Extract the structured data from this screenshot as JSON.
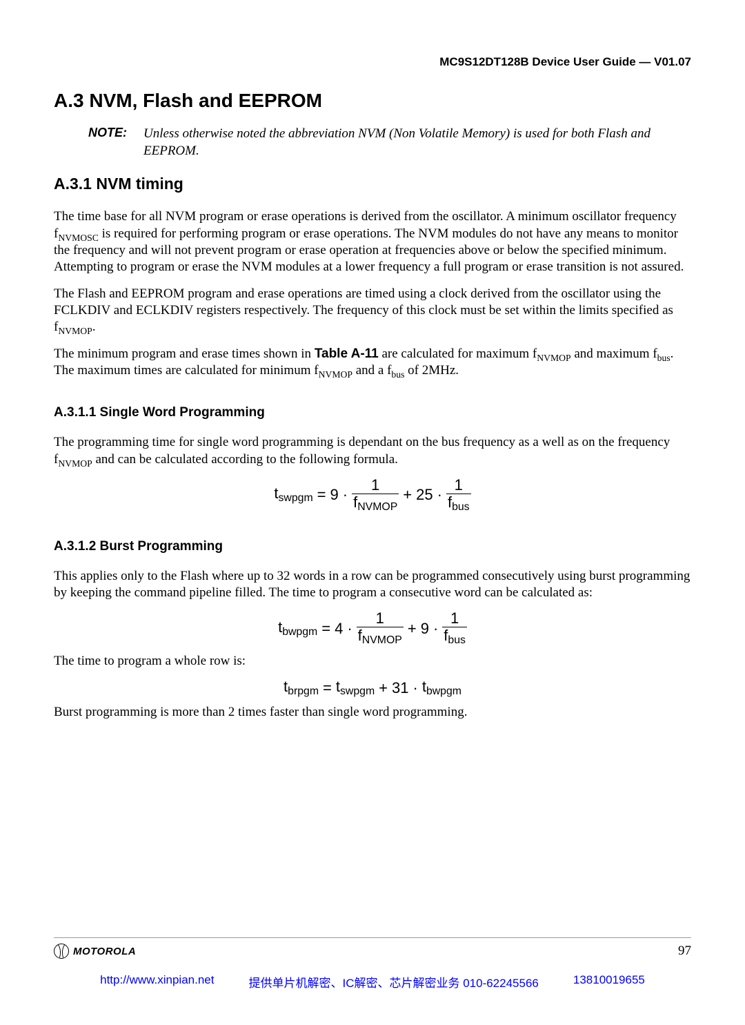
{
  "header": {
    "doc_title": "MC9S12DT128B Device User Guide — V01.07"
  },
  "section": {
    "h1": "A.3  NVM, Flash and EEPROM",
    "note_label": "NOTE:",
    "note_text": "Unless otherwise noted the abbreviation NVM (Non Volatile Memory) is used for both Flash and EEPROM.",
    "h2": "A.3.1  NVM timing",
    "p1_a": "The time base for all NVM program or erase operations is derived from the oscillator. A minimum oscillator frequency f",
    "p1_sub1": "NVMOSC",
    "p1_b": " is required for performing program or erase operations. The NVM modules do not have any means to monitor the frequency and will not prevent program or erase operation at frequencies above or below the specified minimum. Attempting to program or erase the NVM modules at a lower frequency a full program or erase transition is not assured.",
    "p2_a": "The Flash and EEPROM program and erase operations are timed using a clock derived from the oscillator using the FCLKDIV and ECLKDIV registers respectively. The frequency of this clock must be set within the limits specified as f",
    "p2_sub1": "NVMOP",
    "p2_b": ".",
    "p3_a": "The minimum program and erase times shown in ",
    "p3_tableref": "Table A-11",
    "p3_b": " are calculated for maximum f",
    "p3_sub1": "NVMOP",
    "p3_c": " and maximum f",
    "p3_sub2": "bus",
    "p3_d": ". The maximum times are calculated for minimum f",
    "p3_sub3": "NVMOP",
    "p3_e": " and a f",
    "p3_sub4": "bus",
    "p3_f": " of 2MHz.",
    "h3a": "A.3.1.1  Single Word Programming",
    "p4_a": "The programming time for single word programming is dependant on the bus frequency as a well as on the frequency f",
    "p4_sub1": "NVMOP",
    "p4_b": " and can be calculated according to the following formula.",
    "h3b": "A.3.1.2  Burst Programming",
    "p5": "This applies only to the Flash where up to 32 words in a row can be programmed consecutively using burst programming by keeping the command pipeline filled. The time to program a consecutive word can be calculated as:",
    "p6": "The time to program a whole row is:",
    "p7": "Burst programming is more than 2 times faster than single word programming."
  },
  "formula1": {
    "lhs_base": "t",
    "lhs_sub": "swpgm",
    "eq": " = ",
    "c1": "9",
    "dot": " · ",
    "num1": "1",
    "den1_base": "f",
    "den1_sub": "NVMOP",
    "plus": " + ",
    "c2": "25",
    "num2": "1",
    "den2_base": "f",
    "den2_sub": "bus"
  },
  "formula2": {
    "lhs_base": "t",
    "lhs_sub": "bwpgm",
    "eq": " = ",
    "c1": "4",
    "dot": " · ",
    "num1": "1",
    "den1_base": "f",
    "den1_sub": "NVMOP",
    "plus": " + ",
    "c2": "9",
    "num2": "1",
    "den2_base": "f",
    "den2_sub": "bus"
  },
  "formula3": {
    "lhs_base": "t",
    "lhs_sub": "brpgm",
    "eq": " = ",
    "r1_base": "t",
    "r1_sub": "swpgm",
    "plus": " + ",
    "c1": "31",
    "dot": " · ",
    "r2_base": "t",
    "r2_sub": "bwpgm"
  },
  "footer": {
    "brand": "MOTOROLA",
    "page_no": "97",
    "url": "http://www.xinpian.net",
    "services": "提供单片机解密、IC解密、芯片解密业务   010-62245566",
    "phone2": "13810019655"
  }
}
